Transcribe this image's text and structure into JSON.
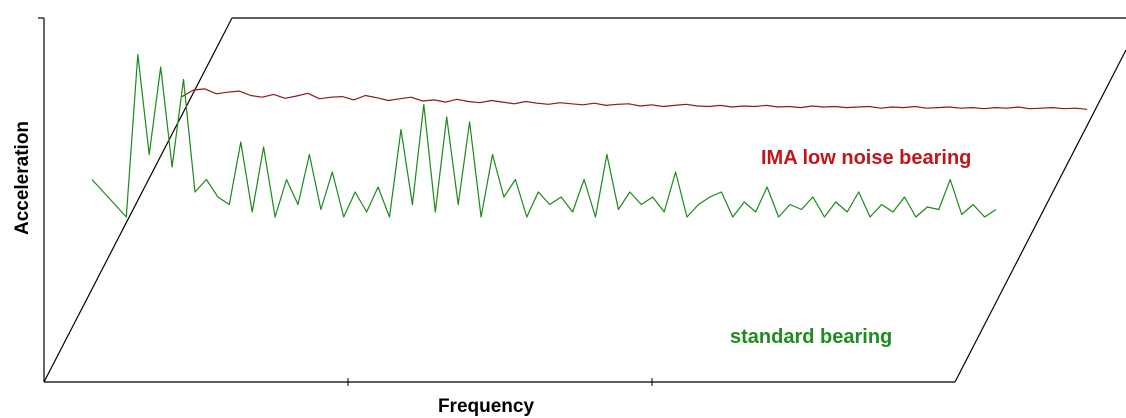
{
  "chart_data": {
    "type": "line",
    "title": "",
    "xlabel": "Frequency",
    "ylabel": "Acceleration",
    "x_tick_labels": [],
    "y_tick_labels": [],
    "grid": false,
    "legend": "none",
    "series": [
      {
        "name": "IMA low noise bearing",
        "color": "#8b1a1a",
        "label_color": "#c0161b",
        "values": [
          28,
          40,
          42,
          33,
          36,
          38,
          30,
          27,
          32,
          25,
          29,
          34,
          24,
          27,
          28,
          22,
          30,
          26,
          21,
          24,
          27,
          20,
          22,
          18,
          23,
          19,
          17,
          21,
          18,
          15,
          19,
          16,
          14,
          17,
          15,
          13,
          16,
          12,
          14,
          15,
          11,
          13,
          10,
          12,
          14,
          11,
          10,
          12,
          9,
          11,
          10,
          12,
          9,
          10,
          8,
          11,
          9,
          10,
          8,
          9,
          10,
          7,
          9,
          8,
          10,
          7,
          8,
          9,
          7,
          8,
          6,
          8,
          7,
          9,
          6,
          7,
          8,
          6,
          7,
          5
        ]
      },
      {
        "name": "standard bearing",
        "color": "#1a8a1a",
        "label_color": "#1e8c1e",
        "values": [
          45,
          40,
          35,
          30,
          95,
          55,
          90,
          50,
          85,
          40,
          45,
          38,
          35,
          60,
          32,
          58,
          30,
          45,
          35,
          55,
          33,
          48,
          30,
          40,
          32,
          42,
          30,
          65,
          35,
          75,
          32,
          70,
          35,
          68,
          30,
          55,
          38,
          45,
          30,
          40,
          35,
          38,
          32,
          45,
          30,
          55,
          33,
          40,
          35,
          38,
          32,
          48,
          30,
          35,
          38,
          40,
          30,
          36,
          32,
          42,
          30,
          35,
          33,
          38,
          30,
          36,
          32,
          40,
          30,
          35,
          32,
          38,
          30,
          34,
          33,
          45,
          31,
          35,
          30,
          33
        ]
      }
    ],
    "ylim": [
      0,
      100
    ]
  }
}
